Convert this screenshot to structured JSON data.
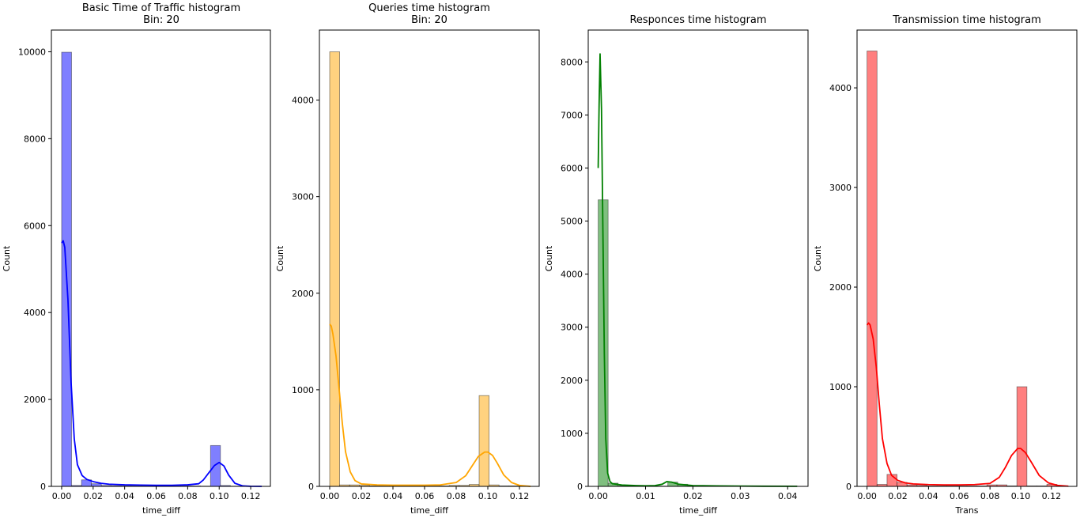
{
  "chart_data": [
    {
      "type": "bar",
      "title": "Basic Time of Traffic histogram",
      "subtitle": "Bin: 20",
      "xlabel": "time_diff",
      "ylabel": "Count",
      "color": "#0000ff",
      "xlim": [
        -0.0065,
        0.1325
      ],
      "ylim": [
        0,
        10500
      ],
      "xticks": [
        0.0,
        0.02,
        0.04,
        0.06,
        0.08,
        0.1,
        0.12
      ],
      "xtick_labels": [
        "0.00",
        "0.02",
        "0.04",
        "0.06",
        "0.08",
        "0.10",
        "0.12"
      ],
      "yticks": [
        0,
        2000,
        4000,
        6000,
        8000,
        10000
      ],
      "ytick_labels": [
        "0",
        "2000",
        "4000",
        "6000",
        "8000",
        "10000"
      ],
      "bin_start": 0.0,
      "bin_width": 0.0063,
      "values": [
        9990,
        20,
        150,
        60,
        20,
        15,
        10,
        10,
        10,
        10,
        10,
        10,
        10,
        10,
        5,
        940,
        20,
        5,
        5,
        5
      ],
      "kde": [
        [
          0.0,
          5600
        ],
        [
          0.001,
          5650
        ],
        [
          0.002,
          5500
        ],
        [
          0.004,
          4300
        ],
        [
          0.006,
          2400
        ],
        [
          0.008,
          1100
        ],
        [
          0.01,
          500
        ],
        [
          0.013,
          250
        ],
        [
          0.016,
          160
        ],
        [
          0.02,
          110
        ],
        [
          0.025,
          70
        ],
        [
          0.03,
          50
        ],
        [
          0.04,
          35
        ],
        [
          0.05,
          30
        ],
        [
          0.06,
          25
        ],
        [
          0.07,
          25
        ],
        [
          0.08,
          35
        ],
        [
          0.087,
          60
        ],
        [
          0.09,
          150
        ],
        [
          0.094,
          340
        ],
        [
          0.097,
          480
        ],
        [
          0.1,
          550
        ],
        [
          0.103,
          470
        ],
        [
          0.106,
          260
        ],
        [
          0.11,
          70
        ],
        [
          0.115,
          10
        ],
        [
          0.12,
          2
        ],
        [
          0.127,
          0
        ]
      ]
    },
    {
      "type": "bar",
      "title": "Queries time histogram",
      "subtitle": "Bin: 20",
      "xlabel": "time_diff",
      "ylabel": "Count",
      "color": "#ffa500",
      "xlim": [
        -0.0065,
        0.1325
      ],
      "ylim": [
        0,
        4725
      ],
      "xticks": [
        0.0,
        0.02,
        0.04,
        0.06,
        0.08,
        0.1,
        0.12
      ],
      "xtick_labels": [
        "0.00",
        "0.02",
        "0.04",
        "0.06",
        "0.08",
        "0.10",
        "0.12"
      ],
      "yticks": [
        0,
        1000,
        2000,
        3000,
        4000
      ],
      "ytick_labels": [
        "0",
        "1000",
        "2000",
        "3000",
        "4000"
      ],
      "bin_start": 0.0,
      "bin_width": 0.0063,
      "values": [
        4500,
        15,
        15,
        10,
        5,
        5,
        5,
        5,
        5,
        5,
        5,
        5,
        10,
        10,
        20,
        940,
        15,
        5,
        5,
        5
      ],
      "kde": [
        [
          0.0,
          1680
        ],
        [
          0.001,
          1660
        ],
        [
          0.002,
          1580
        ],
        [
          0.004,
          1350
        ],
        [
          0.006,
          1000
        ],
        [
          0.008,
          650
        ],
        [
          0.01,
          360
        ],
        [
          0.013,
          150
        ],
        [
          0.016,
          60
        ],
        [
          0.02,
          25
        ],
        [
          0.03,
          15
        ],
        [
          0.04,
          12
        ],
        [
          0.05,
          12
        ],
        [
          0.06,
          12
        ],
        [
          0.07,
          15
        ],
        [
          0.08,
          40
        ],
        [
          0.086,
          110
        ],
        [
          0.09,
          210
        ],
        [
          0.094,
          310
        ],
        [
          0.098,
          355
        ],
        [
          0.1,
          355
        ],
        [
          0.103,
          320
        ],
        [
          0.106,
          240
        ],
        [
          0.11,
          120
        ],
        [
          0.115,
          40
        ],
        [
          0.12,
          10
        ],
        [
          0.127,
          0
        ]
      ]
    },
    {
      "type": "bar",
      "title": "Responces time histogram",
      "xlabel": "time_diff",
      "ylabel": "Count",
      "color": "#008000",
      "xlim": [
        -0.0021,
        0.0443
      ],
      "ylim": [
        0,
        8600
      ],
      "xticks": [
        0.0,
        0.01,
        0.02,
        0.03,
        0.04
      ],
      "xtick_labels": [
        "0.00",
        "0.01",
        "0.02",
        "0.03",
        "0.04"
      ],
      "yticks": [
        0,
        1000,
        2000,
        3000,
        4000,
        5000,
        6000,
        7000,
        8000
      ],
      "ytick_labels": [
        "0",
        "1000",
        "2000",
        "3000",
        "4000",
        "5000",
        "6000",
        "7000",
        "8000"
      ],
      "bin_start": 0.0,
      "bin_width": 0.0021,
      "values": [
        5400,
        60,
        10,
        5,
        5,
        5,
        5,
        80,
        40,
        10,
        5,
        5,
        5,
        5,
        5,
        5,
        5,
        5,
        5,
        5
      ],
      "kde": [
        [
          0.0,
          6000
        ],
        [
          0.0002,
          7200
        ],
        [
          0.0004,
          8150
        ],
        [
          0.0007,
          7100
        ],
        [
          0.001,
          4800
        ],
        [
          0.0013,
          2500
        ],
        [
          0.0016,
          900
        ],
        [
          0.002,
          250
        ],
        [
          0.0025,
          90
        ],
        [
          0.003,
          50
        ],
        [
          0.005,
          25
        ],
        [
          0.008,
          15
        ],
        [
          0.01,
          10
        ],
        [
          0.012,
          15
        ],
        [
          0.0135,
          40
        ],
        [
          0.0145,
          90
        ],
        [
          0.0155,
          80
        ],
        [
          0.017,
          40
        ],
        [
          0.02,
          15
        ],
        [
          0.025,
          8
        ],
        [
          0.03,
          5
        ],
        [
          0.035,
          3
        ],
        [
          0.042,
          2
        ]
      ]
    },
    {
      "type": "bar",
      "title": "Transmission time histogram",
      "xlabel": "Trans",
      "ylabel": "Count",
      "color": "#ff0000",
      "xlim": [
        -0.0065,
        0.1365
      ],
      "ylim": [
        0,
        4580
      ],
      "xticks": [
        0.0,
        0.02,
        0.04,
        0.06,
        0.08,
        0.1,
        0.12
      ],
      "xtick_labels": [
        "0.00",
        "0.02",
        "0.04",
        "0.06",
        "0.08",
        "0.10",
        "0.12"
      ],
      "yticks": [
        0,
        1000,
        2000,
        3000,
        4000
      ],
      "ytick_labels": [
        "0",
        "1000",
        "2000",
        "3000",
        "4000"
      ],
      "bin_start": 0.0,
      "bin_width": 0.0065,
      "values": [
        4370,
        20,
        120,
        40,
        15,
        10,
        5,
        5,
        5,
        5,
        5,
        5,
        15,
        15,
        5,
        1000,
        5,
        5,
        20,
        5
      ],
      "kde": [
        [
          0.0,
          1620
        ],
        [
          0.001,
          1640
        ],
        [
          0.002,
          1620
        ],
        [
          0.004,
          1480
        ],
        [
          0.006,
          1200
        ],
        [
          0.008,
          820
        ],
        [
          0.01,
          480
        ],
        [
          0.013,
          230
        ],
        [
          0.016,
          110
        ],
        [
          0.02,
          60
        ],
        [
          0.025,
          35
        ],
        [
          0.03,
          25
        ],
        [
          0.04,
          18
        ],
        [
          0.05,
          15
        ],
        [
          0.06,
          15
        ],
        [
          0.07,
          18
        ],
        [
          0.08,
          30
        ],
        [
          0.086,
          90
        ],
        [
          0.09,
          190
        ],
        [
          0.094,
          310
        ],
        [
          0.098,
          380
        ],
        [
          0.1,
          380
        ],
        [
          0.103,
          340
        ],
        [
          0.107,
          240
        ],
        [
          0.112,
          110
        ],
        [
          0.118,
          35
        ],
        [
          0.124,
          10
        ],
        [
          0.131,
          2
        ]
      ]
    }
  ]
}
